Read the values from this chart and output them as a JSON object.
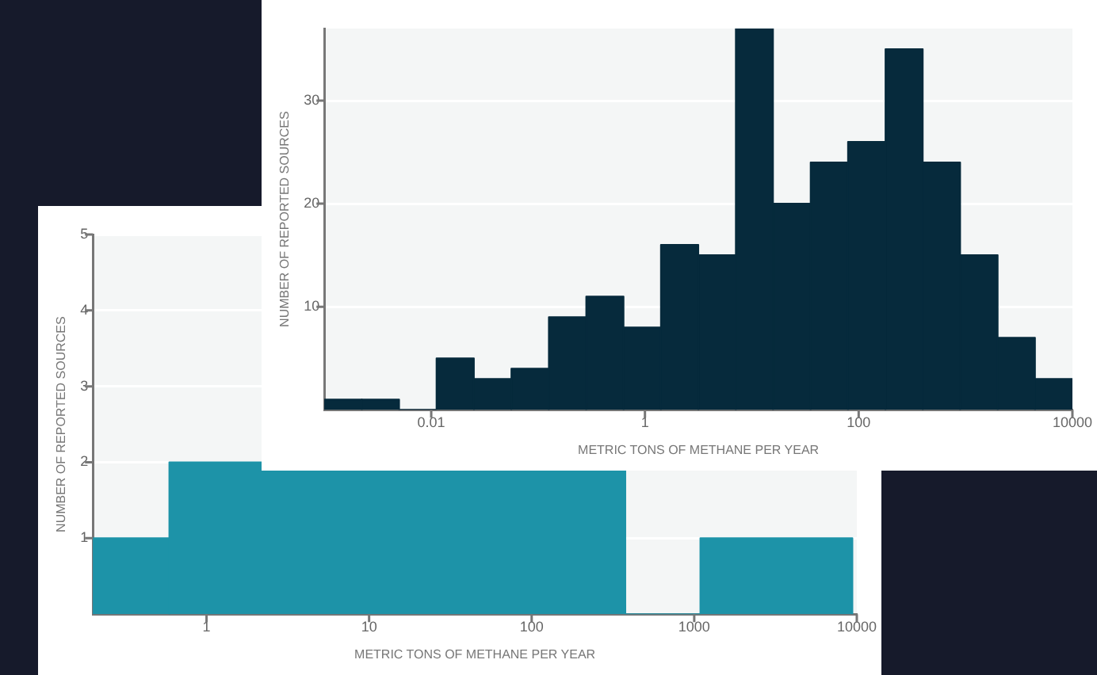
{
  "chart_data": [
    {
      "type": "histogram",
      "xlabel": "METRIC TONS OF METHANE PER YEAR",
      "ylabel": "NUMBER OF REPORTED SOURCES",
      "log": "x",
      "color": "#062a3c",
      "grid": "y",
      "bins": [
        0.001,
        0.00224,
        0.00501,
        0.0112,
        0.0251,
        0.0562,
        0.126,
        0.282,
        0.631,
        1.41,
        3.16,
        7.08,
        15.8,
        35.5,
        79.4,
        178,
        398,
        891,
        2000,
        4470,
        10000
      ],
      "values": [
        1,
        1,
        0,
        5,
        3,
        4,
        9,
        11,
        8,
        16,
        15,
        37,
        20,
        24,
        26,
        35,
        24,
        15,
        7,
        3
      ],
      "xlim": [
        0.001,
        10000
      ],
      "xticks": [
        0.01,
        1,
        100,
        10000
      ],
      "ylim": [
        0,
        37
      ],
      "yticks": [
        10,
        20,
        30
      ]
    },
    {
      "type": "histogram",
      "xlabel": "METRIC TONS OF METHANE PER YEAR",
      "ylabel": "NUMBER OF REPORTED SOURCES",
      "log": "x",
      "color": "#1d93a8",
      "grid": "y",
      "bins": [
        0.2,
        0.59,
        377,
        1090,
        9400
      ],
      "values": [
        1,
        2,
        0,
        1
      ],
      "xlim": [
        0.2,
        10000
      ],
      "xticks": [
        1,
        10,
        100,
        1000,
        10000
      ],
      "ylim": [
        0,
        5
      ],
      "yticks": [
        1,
        2,
        3,
        4,
        5
      ]
    }
  ]
}
